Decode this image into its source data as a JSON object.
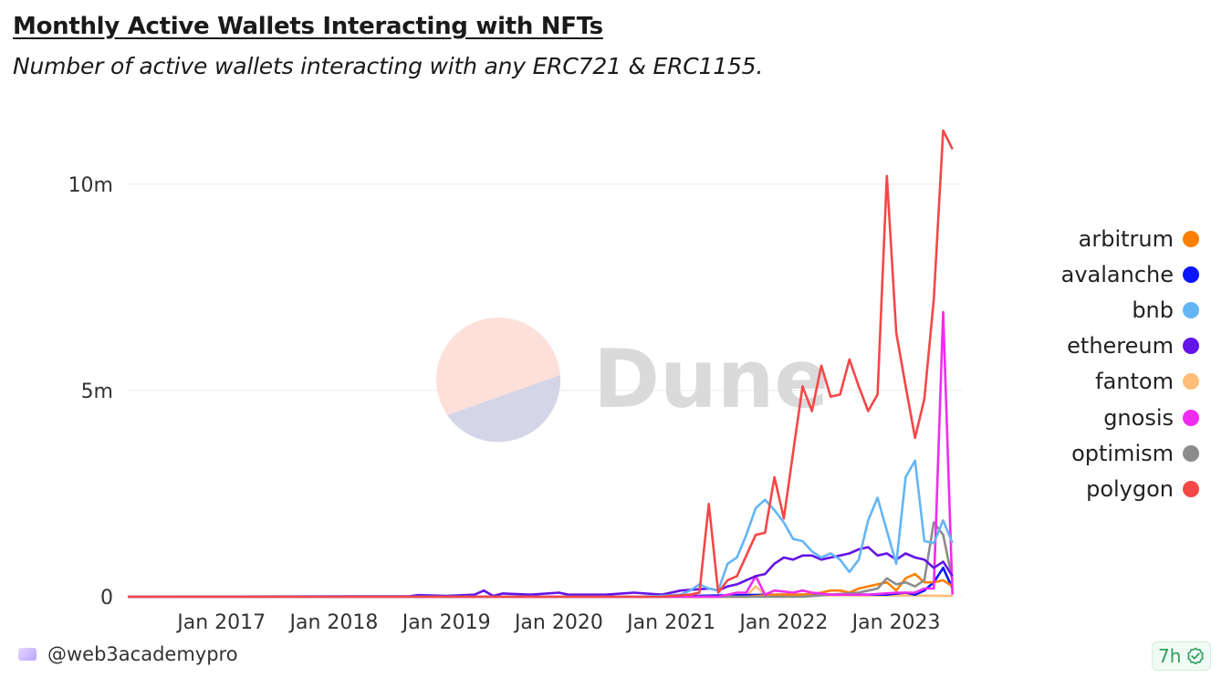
{
  "header": {
    "title": "Monthly Active Wallets Interacting with NFTs",
    "subtitle": "Number of active wallets interacting with any ERC721 & ERC1155."
  },
  "watermark": {
    "text": "Dune"
  },
  "footer": {
    "handle": "@web3academypro",
    "badge": "7h"
  },
  "colors": {
    "arbitrum": "#ff8000",
    "avalanche": "#0a14ff",
    "bnb": "#64b5f6",
    "ethereum": "#6414e6",
    "fantom": "#ffbe78",
    "gnosis": "#f02cf0",
    "optimism": "#8c8c8c",
    "polygon": "#f44747"
  },
  "chart_data": {
    "type": "line",
    "title": "Monthly Active Wallets Interacting with NFTs",
    "subtitle": "Number of active wallets interacting with any ERC721 & ERC1155.",
    "xlabel": "",
    "ylabel": "",
    "x_ticks": [
      "Jan 2017",
      "Jan 2018",
      "Jan 2019",
      "Jan 2020",
      "Jan 2021",
      "Jan 2022",
      "Jan 2023"
    ],
    "y_ticks": [
      "0",
      "5m",
      "10m"
    ],
    "ylim": [
      0,
      11500000
    ],
    "xlim": [
      "2016-03",
      "2023-08"
    ],
    "grid": true,
    "legend": "right",
    "series": [
      {
        "name": "polygon",
        "points": [
          [
            "2020-12",
            0.0
          ],
          [
            "2021-01",
            0.02
          ],
          [
            "2021-03",
            0.05
          ],
          [
            "2021-04",
            0.1
          ],
          [
            "2021-05",
            2.25
          ],
          [
            "2021-06",
            0.1
          ],
          [
            "2021-07",
            0.4
          ],
          [
            "2021-08",
            0.5
          ],
          [
            "2021-09",
            1.0
          ],
          [
            "2021-10",
            1.5
          ],
          [
            "2021-11",
            1.55
          ],
          [
            "2021-12",
            2.9
          ],
          [
            "2022-01",
            1.9
          ],
          [
            "2022-02",
            3.5
          ],
          [
            "2022-03",
            5.1
          ],
          [
            "2022-04",
            4.5
          ],
          [
            "2022-05",
            5.6
          ],
          [
            "2022-06",
            4.85
          ],
          [
            "2022-07",
            4.9
          ],
          [
            "2022-08",
            5.75
          ],
          [
            "2022-09",
            5.1
          ],
          [
            "2022-10",
            4.5
          ],
          [
            "2022-11",
            4.9
          ],
          [
            "2022-12",
            10.2
          ],
          [
            "2023-01",
            6.4
          ],
          [
            "2023-02",
            5.1
          ],
          [
            "2023-03",
            3.85
          ],
          [
            "2023-04",
            4.8
          ],
          [
            "2023-05",
            7.2
          ],
          [
            "2023-06",
            11.3
          ],
          [
            "2023-07",
            10.85
          ]
        ]
      },
      {
        "name": "bnb",
        "points": [
          [
            "2020-09",
            0.0
          ],
          [
            "2020-12",
            0.02
          ],
          [
            "2021-02",
            0.05
          ],
          [
            "2021-03",
            0.15
          ],
          [
            "2021-04",
            0.3
          ],
          [
            "2021-05",
            0.2
          ],
          [
            "2021-06",
            0.15
          ],
          [
            "2021-07",
            0.8
          ],
          [
            "2021-08",
            0.95
          ],
          [
            "2021-09",
            1.5
          ],
          [
            "2021-10",
            2.15
          ],
          [
            "2021-11",
            2.35
          ],
          [
            "2021-12",
            2.1
          ],
          [
            "2022-01",
            1.8
          ],
          [
            "2022-02",
            1.4
          ],
          [
            "2022-03",
            1.35
          ],
          [
            "2022-04",
            1.1
          ],
          [
            "2022-05",
            0.95
          ],
          [
            "2022-06",
            1.05
          ],
          [
            "2022-07",
            0.9
          ],
          [
            "2022-08",
            0.6
          ],
          [
            "2022-09",
            0.9
          ],
          [
            "2022-10",
            1.85
          ],
          [
            "2022-11",
            2.4
          ],
          [
            "2022-12",
            1.6
          ],
          [
            "2023-01",
            0.8
          ],
          [
            "2023-02",
            2.9
          ],
          [
            "2023-03",
            3.3
          ],
          [
            "2023-04",
            1.35
          ],
          [
            "2023-05",
            1.3
          ],
          [
            "2023-06",
            1.85
          ],
          [
            "2023-07",
            1.3
          ]
        ]
      },
      {
        "name": "ethereum",
        "points": [
          [
            "2016-03",
            0.0
          ],
          [
            "2018-09",
            0.01
          ],
          [
            "2018-10",
            0.04
          ],
          [
            "2019-01",
            0.02
          ],
          [
            "2019-04",
            0.05
          ],
          [
            "2019-05",
            0.15
          ],
          [
            "2019-06",
            0.02
          ],
          [
            "2019-07",
            0.08
          ],
          [
            "2019-10",
            0.05
          ],
          [
            "2020-01",
            0.1
          ],
          [
            "2020-02",
            0.05
          ],
          [
            "2020-06",
            0.05
          ],
          [
            "2020-09",
            0.1
          ],
          [
            "2020-12",
            0.05
          ],
          [
            "2021-02",
            0.15
          ],
          [
            "2021-05",
            0.2
          ],
          [
            "2021-06",
            0.15
          ],
          [
            "2021-07",
            0.25
          ],
          [
            "2021-08",
            0.3
          ],
          [
            "2021-09",
            0.4
          ],
          [
            "2021-10",
            0.5
          ],
          [
            "2021-11",
            0.55
          ],
          [
            "2021-12",
            0.8
          ],
          [
            "2022-01",
            0.95
          ],
          [
            "2022-02",
            0.9
          ],
          [
            "2022-03",
            1.0
          ],
          [
            "2022-04",
            1.0
          ],
          [
            "2022-05",
            0.9
          ],
          [
            "2022-06",
            0.95
          ],
          [
            "2022-07",
            1.0
          ],
          [
            "2022-08",
            1.05
          ],
          [
            "2022-09",
            1.15
          ],
          [
            "2022-10",
            1.2
          ],
          [
            "2022-11",
            1.0
          ],
          [
            "2022-12",
            1.05
          ],
          [
            "2023-01",
            0.9
          ],
          [
            "2023-02",
            1.05
          ],
          [
            "2023-03",
            0.95
          ],
          [
            "2023-04",
            0.9
          ],
          [
            "2023-05",
            0.7
          ],
          [
            "2023-06",
            0.85
          ],
          [
            "2023-07",
            0.5
          ]
        ]
      },
      {
        "name": "gnosis",
        "points": [
          [
            "2021-06",
            0.0
          ],
          [
            "2021-08",
            0.1
          ],
          [
            "2021-09",
            0.1
          ],
          [
            "2021-10",
            0.5
          ],
          [
            "2021-11",
            0.05
          ],
          [
            "2021-12",
            0.15
          ],
          [
            "2022-02",
            0.1
          ],
          [
            "2022-03",
            0.15
          ],
          [
            "2022-04",
            0.1
          ],
          [
            "2022-06",
            0.05
          ],
          [
            "2022-10",
            0.05
          ],
          [
            "2023-01",
            0.1
          ],
          [
            "2023-03",
            0.1
          ],
          [
            "2023-04",
            0.2
          ],
          [
            "2023-05",
            0.2
          ],
          [
            "2023-06",
            6.9
          ],
          [
            "2023-07",
            0.05
          ]
        ]
      },
      {
        "name": "optimism",
        "points": [
          [
            "2022-03",
            0.0
          ],
          [
            "2022-06",
            0.05
          ],
          [
            "2022-09",
            0.1
          ],
          [
            "2022-10",
            0.15
          ],
          [
            "2022-11",
            0.2
          ],
          [
            "2022-12",
            0.45
          ],
          [
            "2023-01",
            0.3
          ],
          [
            "2023-02",
            0.35
          ],
          [
            "2023-03",
            0.25
          ],
          [
            "2023-04",
            0.4
          ],
          [
            "2023-05",
            1.8
          ],
          [
            "2023-06",
            1.5
          ],
          [
            "2023-07",
            0.4
          ]
        ]
      },
      {
        "name": "arbitrum",
        "points": [
          [
            "2021-09",
            0.0
          ],
          [
            "2021-12",
            0.05
          ],
          [
            "2022-03",
            0.05
          ],
          [
            "2022-05",
            0.1
          ],
          [
            "2022-06",
            0.15
          ],
          [
            "2022-07",
            0.15
          ],
          [
            "2022-08",
            0.1
          ],
          [
            "2022-09",
            0.2
          ],
          [
            "2022-10",
            0.25
          ],
          [
            "2022-11",
            0.3
          ],
          [
            "2022-12",
            0.35
          ],
          [
            "2023-01",
            0.15
          ],
          [
            "2023-02",
            0.45
          ],
          [
            "2023-03",
            0.55
          ],
          [
            "2023-04",
            0.35
          ],
          [
            "2023-05",
            0.35
          ],
          [
            "2023-06",
            0.4
          ],
          [
            "2023-07",
            0.25
          ]
        ]
      },
      {
        "name": "avalanche",
        "points": [
          [
            "2020-10",
            0.0
          ],
          [
            "2021-01",
            0.01
          ],
          [
            "2021-06",
            0.03
          ],
          [
            "2021-12",
            0.05
          ],
          [
            "2022-06",
            0.05
          ],
          [
            "2022-12",
            0.05
          ],
          [
            "2023-02",
            0.1
          ],
          [
            "2023-03",
            0.05
          ],
          [
            "2023-04",
            0.15
          ],
          [
            "2023-05",
            0.35
          ],
          [
            "2023-06",
            0.7
          ],
          [
            "2023-07",
            0.2
          ]
        ]
      },
      {
        "name": "fantom",
        "points": [
          [
            "2021-06",
            0.0
          ],
          [
            "2021-09",
            0.02
          ],
          [
            "2021-10",
            0.25
          ],
          [
            "2021-11",
            0.05
          ],
          [
            "2022-03",
            0.05
          ],
          [
            "2022-09",
            0.03
          ],
          [
            "2023-03",
            0.03
          ],
          [
            "2023-07",
            0.02
          ]
        ]
      }
    ]
  }
}
